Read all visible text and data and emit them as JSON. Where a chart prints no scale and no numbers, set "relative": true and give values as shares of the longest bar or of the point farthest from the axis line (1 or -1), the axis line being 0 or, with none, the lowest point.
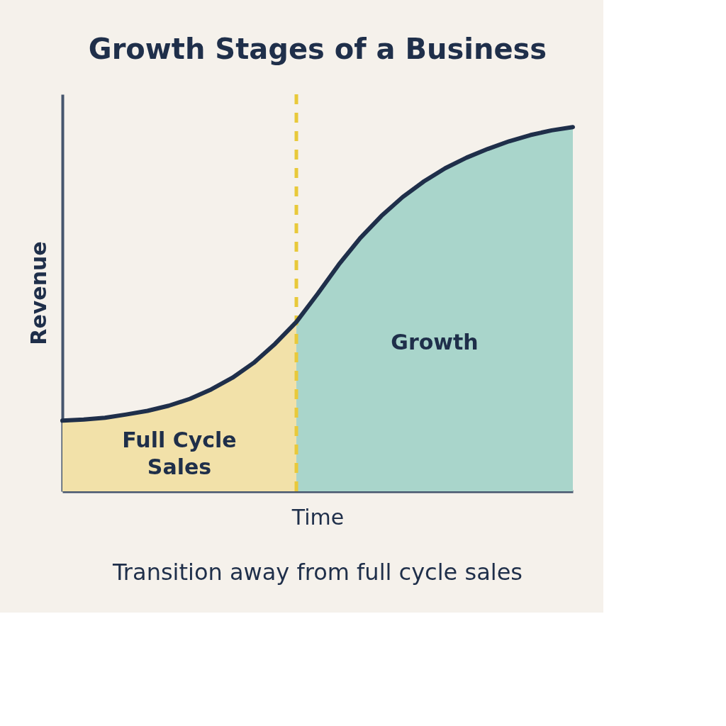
{
  "chart_data": {
    "type": "area",
    "title": "Growth Stages of a Business",
    "xlabel": "Time",
    "ylabel": "Revenue",
    "relative": true,
    "categories": [
      null,
      null,
      null,
      null,
      null,
      null,
      null,
      null,
      null,
      null,
      null,
      null,
      null,
      null,
      null,
      null,
      null,
      null,
      null,
      null,
      null,
      null,
      null,
      null,
      null
    ],
    "series": [
      {
        "name": "Full Cycle Sales",
        "color": "#f2e1a9",
        "values": [
          0.194,
          0.197,
          0.202,
          0.211,
          0.221,
          0.235,
          0.254,
          0.28,
          0.312,
          0.353,
          0.405,
          0.465,
          null,
          null,
          null,
          null,
          null,
          null,
          null,
          null,
          null,
          null,
          null,
          null,
          null
        ]
      },
      {
        "name": "Growth",
        "color": "#a9d5cb",
        "values": [
          null,
          null,
          null,
          null,
          null,
          null,
          null,
          null,
          null,
          null,
          null,
          0.465,
          0.542,
          0.623,
          0.695,
          0.756,
          0.808,
          0.851,
          0.887,
          0.916,
          0.94,
          0.961,
          0.978,
          0.991,
          1.0
        ]
      },
      {
        "type": "line",
        "color": "#1f2f4a",
        "values": [
          0.194,
          0.197,
          0.202,
          0.211,
          0.221,
          0.235,
          0.254,
          0.28,
          0.312,
          0.353,
          0.405,
          0.465,
          0.542,
          0.623,
          0.695,
          0.756,
          0.808,
          0.851,
          0.887,
          0.916,
          0.94,
          0.961,
          0.978,
          0.991,
          1.0
        ]
      }
    ],
    "annotations": [
      "Transition away from full cycle sales"
    ]
  }
}
